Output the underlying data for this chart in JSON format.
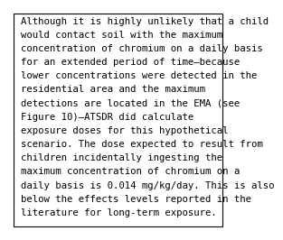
{
  "lines": [
    "Although it is highly unlikely that a child",
    "would contact soil with the maximum",
    "concentration of chromium on a daily basis",
    "for an extended period of time—because",
    "lower concentrations were detected in the",
    "residential area and the maximum",
    "detections are located in the EMA (see",
    "Figure 10)—ATSDR did calculate",
    "exposure doses for this hypothetical",
    "scenario. The dose expected to result from",
    "children incidentally ingesting the",
    "maximum concentration of chromium on a",
    "daily basis is 0.014 mg/kg/day. This is also",
    "below the effects levels reported in the",
    "literature for long-term exposure."
  ],
  "font_size": 7.7,
  "font_family": "monospace",
  "text_color": "#000000",
  "background_color": "#ffffff",
  "border_color": "#000000",
  "border_linewidth": 0.8
}
